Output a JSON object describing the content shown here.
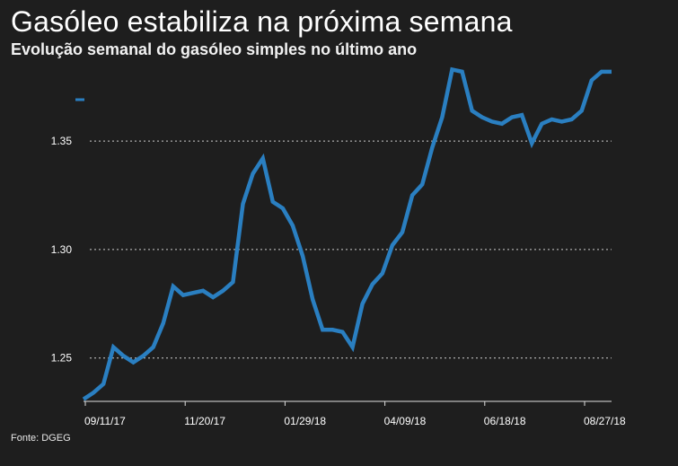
{
  "title": "Gasóleo estabiliza na próxima semana",
  "subtitle": "Evolução semanal do gasóleo simples no último ano",
  "source": "Fonte: DGEG",
  "colors": {
    "line": "#2a7fc1",
    "background": "#1e1e1e",
    "text": "#ffffff",
    "grid": "#cfcfcf"
  },
  "chart_data": {
    "type": "line",
    "title": "Gasóleo estabiliza na próxima semana",
    "subtitle": "Evolução semanal do gasóleo simples no último ano",
    "xlabel": "",
    "ylabel": "",
    "ylim": [
      1.23,
      1.384
    ],
    "grid": true,
    "yticks": [
      1.25,
      1.3,
      1.35
    ],
    "ytick_labels": [
      "1.25",
      "1.30",
      "1.35"
    ],
    "xticks": [
      "09/11/17",
      "11/20/17",
      "01/29/18",
      "04/09/18",
      "06/18/18",
      "08/27/18"
    ],
    "series": [
      {
        "values": [
          1.231,
          1.234,
          1.238,
          1.255,
          1.251,
          1.248,
          1.251,
          1.255,
          1.266,
          1.283,
          1.279,
          1.28,
          1.281,
          1.278,
          1.281,
          1.285,
          1.321,
          1.335,
          1.342,
          1.322,
          1.319,
          1.311,
          1.297,
          1.277,
          1.263,
          1.263,
          1.262,
          1.255,
          1.275,
          1.284,
          1.289,
          1.302,
          1.308,
          1.325,
          1.33,
          1.347,
          1.361,
          1.383,
          1.382,
          1.364,
          1.361,
          1.359,
          1.358,
          1.361,
          1.362,
          1.349,
          1.358,
          1.36,
          1.359,
          1.36,
          1.364,
          1.378,
          1.382,
          1.382
        ]
      }
    ]
  }
}
